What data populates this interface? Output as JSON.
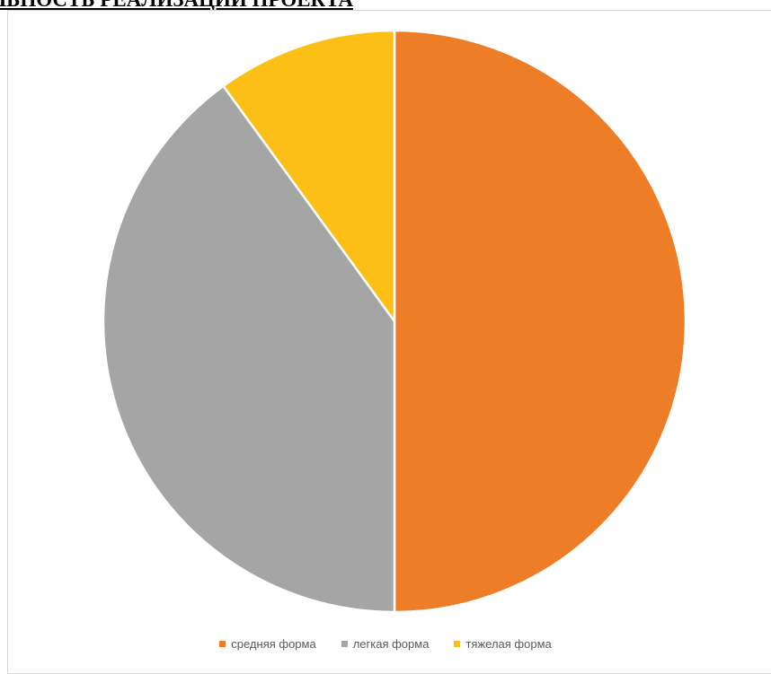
{
  "document": {
    "heading_fragment": "ЛЬНОСТЬ РЕАЛИЗАЦИИ ПРОЕКТА"
  },
  "chart_data": {
    "type": "pie",
    "title": "",
    "categories": [
      "средняя форма",
      "легкая форма",
      "тяжелая форма"
    ],
    "values": [
      50,
      40,
      10
    ],
    "colors": [
      "#ed7d26",
      "#a5a5a5",
      "#fbbf16"
    ],
    "start_angle_deg": 0,
    "direction": "clockwise",
    "legend_position": "bottom",
    "slice_border_color": "#ffffff"
  }
}
